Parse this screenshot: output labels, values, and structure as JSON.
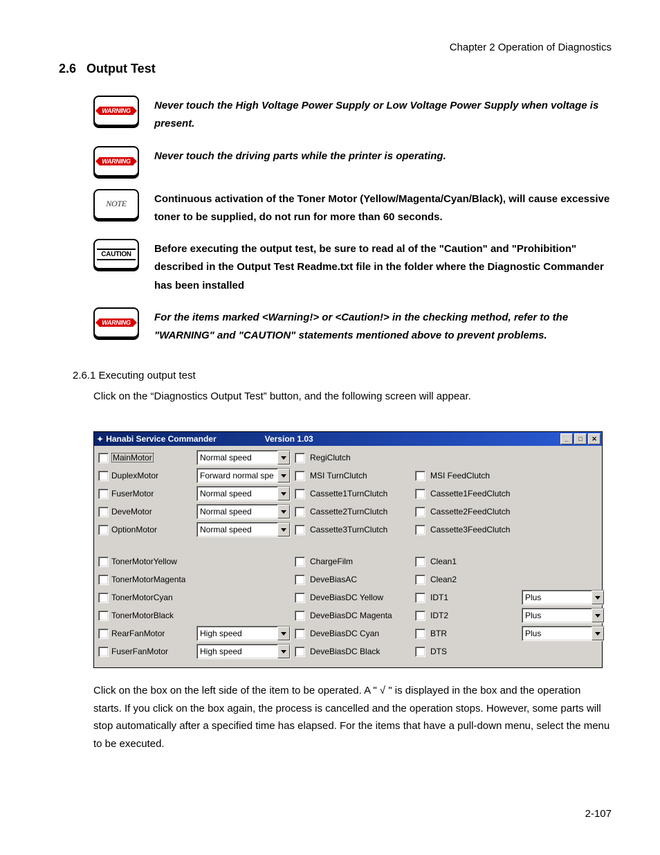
{
  "chapter_line": "Chapter 2  Operation of Diagnostics",
  "section_num": "2.6",
  "section_title": "Output Test",
  "notes": {
    "w1": "Never touch the High Voltage Power Supply or Low Voltage Power Supply when voltage is present.",
    "w2": "Never touch the driving parts while the printer is operating.",
    "n1": "Continuous activation of the Toner Motor (Yellow/Magenta/Cyan/Black), will cause excessive toner to be supplied, do not run for more than 60 seconds.",
    "c1": "Before executing the output test, be sure to read al of the \"Caution\" and \"Prohibition\" described in the Output Test Readme.txt file in the folder where the Diagnostic Commander has been installed",
    "w3": "For the items marked <Warning!> or <Caution!> in the checking method, refer to the \"WARNING\" and \"CAUTION\" statements mentioned above to prevent problems."
  },
  "badge_labels": {
    "warning": "WARNING",
    "note": "NOTE",
    "caution": "CAUTION"
  },
  "sub_heading": "2.6.1 Executing output test",
  "intro_text": "Click on the “Diagnostics Output Test” button, and the following screen will appear.",
  "after_text": "Click on the box on the left side of the item to be operated. A \" √ \" is displayed in the box and the operation starts. If you click on the box again, the process is cancelled and the operation stops. However, some parts will stop automatically after a specified time has elapsed. For the items that have a pull-down menu, select the menu to be executed.",
  "window": {
    "title": "Hanabi Service Commander",
    "version": "Version 1.03",
    "buttons": {
      "min": "_",
      "max": "□",
      "close": "✕"
    },
    "col1": {
      "r1": {
        "label": "MainMotor",
        "combo": "Normal speed"
      },
      "r2": {
        "label": "DuplexMotor",
        "combo": "Forward normal spe"
      },
      "r3": {
        "label": "FuserMotor",
        "combo": "Normal speed"
      },
      "r4": {
        "label": "DeveMotor",
        "combo": "Normal speed"
      },
      "r5": {
        "label": "OptionMotor",
        "combo": "Normal speed"
      },
      "r6": {
        "label": "TonerMotorYellow"
      },
      "r7": {
        "label": "TonerMotorMagenta"
      },
      "r8": {
        "label": "TonerMotorCyan"
      },
      "r9": {
        "label": "TonerMotorBlack"
      },
      "r10": {
        "label": "RearFanMotor",
        "combo": "High speed"
      },
      "r11": {
        "label": "FuserFanMotor",
        "combo": "High speed"
      }
    },
    "col2": {
      "r1": "RegiClutch",
      "r2": "MSI TurnClutch",
      "r3": "Cassette1TurnClutch",
      "r4": "Cassette2TurnClutch",
      "r5": "Cassette3TurnClutch",
      "r6": "ChargeFilm",
      "r7": "DeveBiasAC",
      "r8": "DeveBiasDC Yellow",
      "r9": "DeveBiasDC Magenta",
      "r10": "DeveBiasDC Cyan",
      "r11": "DeveBiasDC Black"
    },
    "col3": {
      "r2": "MSI FeedClutch",
      "r3": "Cassette1FeedClutch",
      "r4": "Cassette2FeedClutch",
      "r5": "Cassette3FeedClutch",
      "r6": "Clean1",
      "r7": "Clean2",
      "r8": {
        "label": "IDT1",
        "combo": "Plus"
      },
      "r9": {
        "label": "IDT2",
        "combo": "Plus"
      },
      "r10": {
        "label": "BTR",
        "combo": "Plus"
      },
      "r11": {
        "label": "DTS"
      }
    }
  },
  "page_number": "2-107"
}
